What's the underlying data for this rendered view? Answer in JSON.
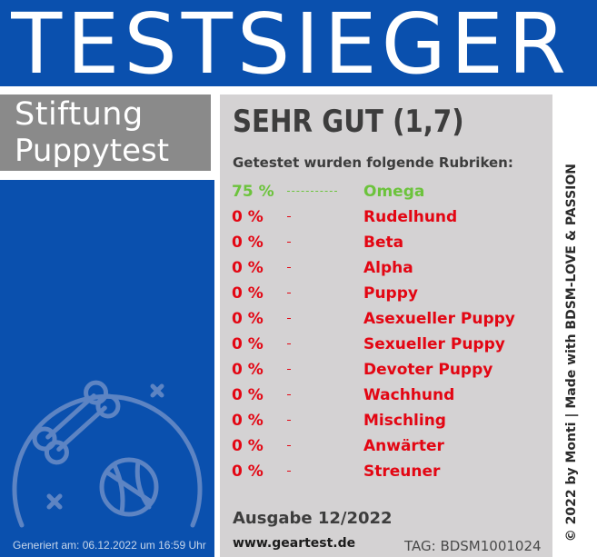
{
  "header": {
    "title": "TESTSIEGER"
  },
  "brand": {
    "line1": "Stiftung",
    "line2": "Puppytest"
  },
  "result": {
    "grade": "SEHR GUT (1,7)",
    "subtitle": "Getestet wurden folgende Rubriken:",
    "categories": [
      {
        "percent": "75 %",
        "name": "Omega",
        "color": "#6cc33c",
        "highlight": true
      },
      {
        "percent": "0 %",
        "name": "Rudelhund",
        "color": "#e30613"
      },
      {
        "percent": "0 %",
        "name": "Beta",
        "color": "#e30613"
      },
      {
        "percent": "0 %",
        "name": "Alpha",
        "color": "#e30613"
      },
      {
        "percent": "0 %",
        "name": "Puppy",
        "color": "#e30613"
      },
      {
        "percent": "0 %",
        "name": "Asexueller Puppy",
        "color": "#e30613"
      },
      {
        "percent": "0 %",
        "name": "Sexueller Puppy",
        "color": "#e30613"
      },
      {
        "percent": "0 %",
        "name": "Devoter Puppy",
        "color": "#e30613"
      },
      {
        "percent": "0 %",
        "name": "Wachhund",
        "color": "#e30613"
      },
      {
        "percent": "0 %",
        "name": "Mischling",
        "color": "#e30613"
      },
      {
        "percent": "0 %",
        "name": "Anwärter",
        "color": "#e30613"
      },
      {
        "percent": "0 %",
        "name": "Streuner",
        "color": "#e30613"
      }
    ]
  },
  "footer": {
    "issue": "Ausgabe 12/2022",
    "website": "www.geartest.de",
    "tag": "TAG: BDSM1001024",
    "generated": "Generiert am: 06.12.2022 um 16:59 Uhr",
    "side_credit": "© 2022 by Monti | Made with BDSM-LOVE & PASSION"
  },
  "badge_icon": "dog-toys-badge-icon",
  "colors": {
    "brand_blue": "#0a50ae",
    "panel_gray": "#d4d2d3",
    "brand_gray": "#8a8a8a",
    "green": "#6cc33c",
    "red": "#e30613"
  }
}
